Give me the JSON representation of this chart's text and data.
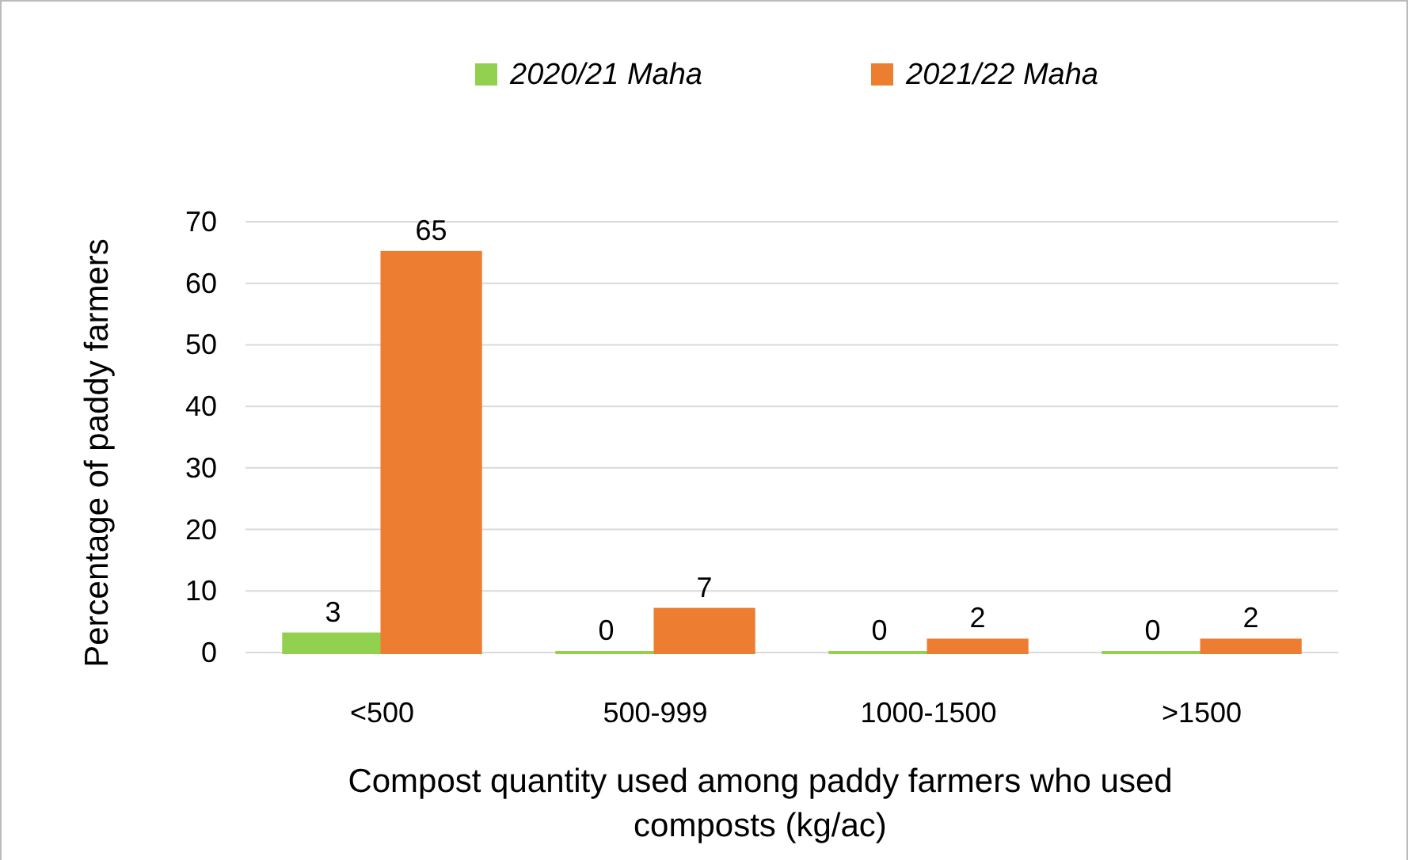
{
  "chart_data": {
    "type": "bar",
    "categories": [
      "<500",
      "500-999",
      "1000-1500",
      ">1500"
    ],
    "series": [
      {
        "name": "2020/21 Maha",
        "color": "#92d050",
        "values": [
          3,
          0,
          0,
          0
        ]
      },
      {
        "name": "2021/22 Maha",
        "color": "#ed7d31",
        "values": [
          65,
          7,
          2,
          2
        ]
      }
    ],
    "ylim": [
      0,
      70
    ],
    "yticks": [
      0,
      10,
      20,
      30,
      40,
      50,
      60,
      70
    ],
    "grid": "y",
    "legend": "top",
    "data_labels": true,
    "xlabel": "Compost quantity used among paddy farmers who used composts (kg/ac)",
    "ylabel": "Percentage of paddy farmers"
  }
}
